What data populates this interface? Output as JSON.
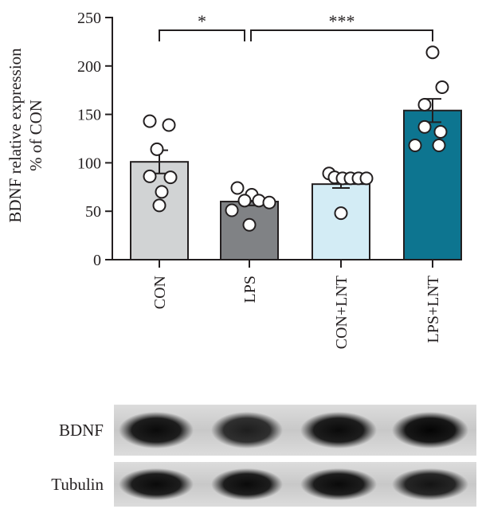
{
  "chart_data": {
    "type": "bar",
    "ylabel": [
      "BDNF relative expression",
      "% of CON"
    ],
    "ylim": [
      0,
      250
    ],
    "yticks": [
      0,
      50,
      100,
      150,
      200,
      250
    ],
    "categories": [
      "CON",
      "LPS",
      "CON+LNT",
      "LPS+LNT"
    ],
    "values": [
      101,
      60,
      78,
      154
    ],
    "errors": [
      12,
      4,
      4,
      12
    ],
    "colors": [
      "#d1d3d4",
      "#808285",
      "#d3ecf5",
      "#0d7590"
    ],
    "points": [
      [
        143,
        139,
        114,
        86,
        85,
        70,
        56
      ],
      [
        74,
        67,
        61,
        61,
        59,
        51,
        36
      ],
      [
        89,
        85,
        84,
        84,
        84,
        84,
        48
      ],
      [
        214,
        178,
        160,
        137,
        132,
        118,
        118
      ]
    ],
    "significance": [
      {
        "from": 0,
        "to": 1,
        "label": "*"
      },
      {
        "from": 1,
        "to": 3,
        "label": "***"
      }
    ],
    "grid": false,
    "legend": "none"
  },
  "blot": {
    "rows": [
      {
        "label": "BDNF",
        "intensity": [
          0.95,
          0.85,
          0.95,
          0.98
        ]
      },
      {
        "label": "Tubulin",
        "intensity": [
          0.95,
          0.95,
          0.95,
          0.9
        ]
      }
    ]
  }
}
